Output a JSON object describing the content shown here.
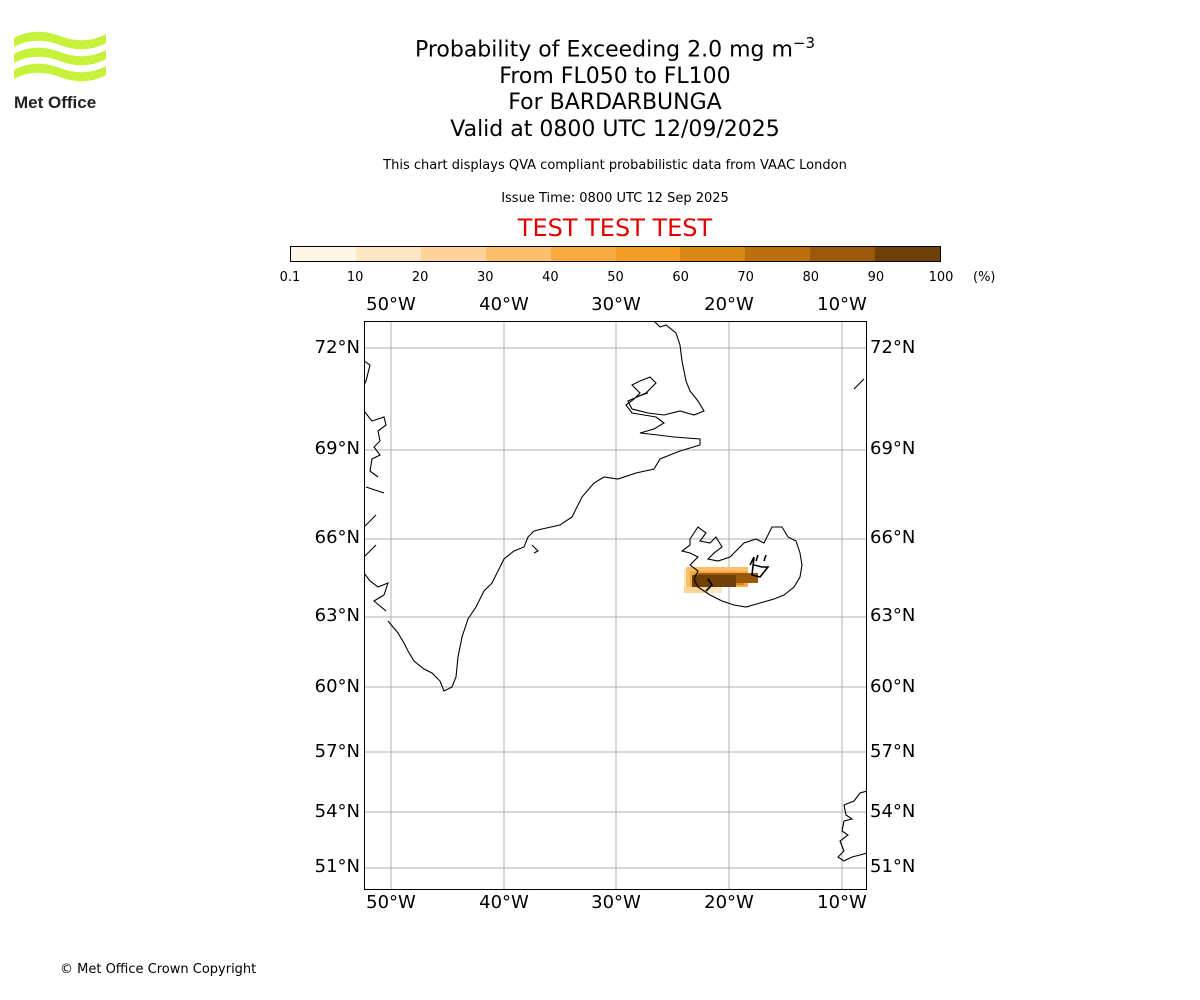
{
  "branding": {
    "logo_text": "Met Office",
    "logo_color": "#c6f23c"
  },
  "header": {
    "title_prefix": "Probability of Exceeding 2.0 mg m",
    "title_exponent": "−3",
    "level_range": "From FL050 to FL100",
    "volcano": "For BARDARBUNGA",
    "valid": "Valid at 0800 UTC 12/09/2025",
    "disclaimer": "This chart displays QVA compliant probabilistic data from VAAC London",
    "issue_time": "Issue Time: 0800 UTC 12 Sep 2025",
    "test_banner": "TEST TEST TEST"
  },
  "colorbar": {
    "labels": [
      "0.1",
      "10",
      "20",
      "30",
      "40",
      "50",
      "60",
      "70",
      "80",
      "90",
      "100"
    ],
    "colors": [
      "#fff6e6",
      "#fde6c2",
      "#fcd39b",
      "#fcbf6e",
      "#faaa43",
      "#f59e25",
      "#d98814",
      "#bb700d",
      "#9a580b",
      "#6e3f07"
    ],
    "unit": "(%)"
  },
  "map": {
    "lat_ticks": [
      "72°N",
      "69°N",
      "66°N",
      "63°N",
      "60°N",
      "57°N",
      "54°N",
      "51°N"
    ],
    "lon_ticks": [
      "50°W",
      "40°W",
      "30°W",
      "20°W",
      "10°W"
    ]
  },
  "footer": {
    "copyright": "© Met Office Crown Copyright"
  }
}
